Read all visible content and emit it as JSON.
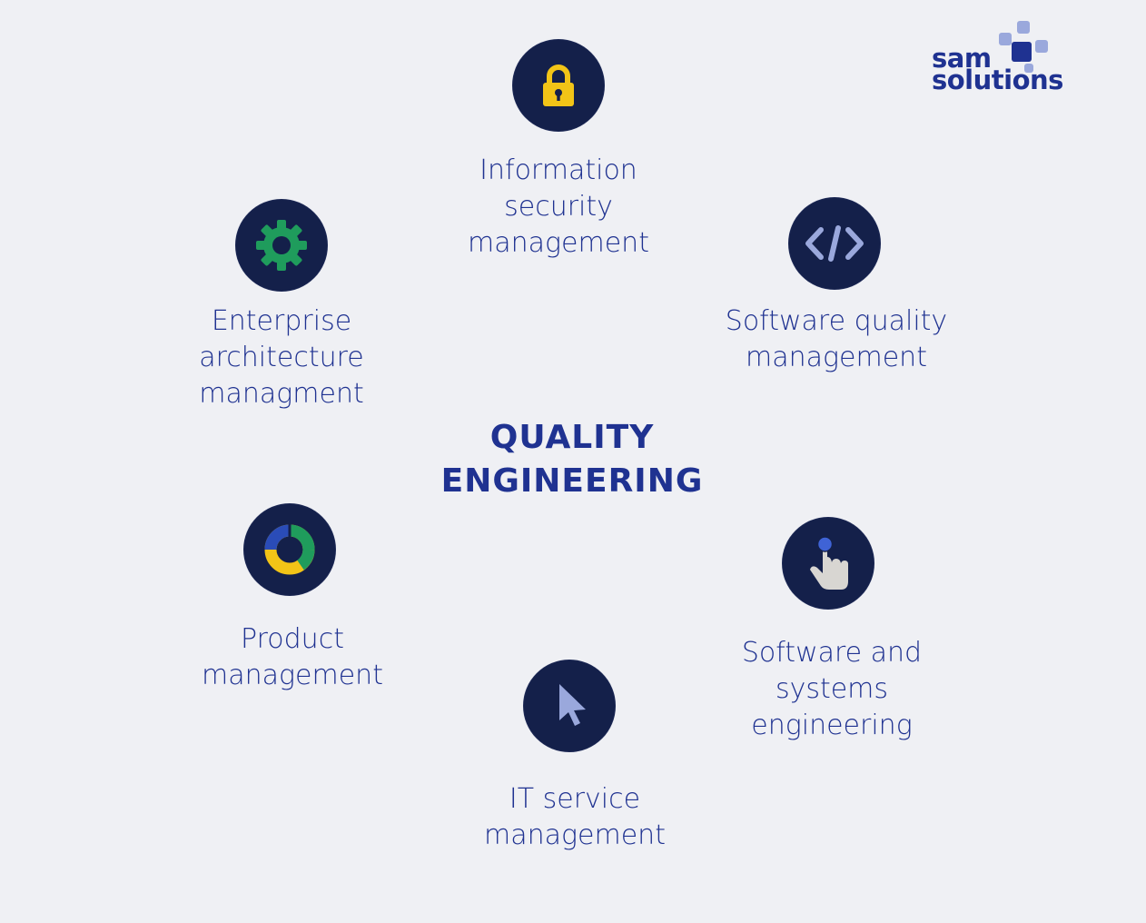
{
  "center": {
    "line1": "QUALITY",
    "line2": "ENGINEERING"
  },
  "logo": {
    "line1": "sam",
    "line2": "solutions"
  },
  "nodes": {
    "infosec": {
      "icon": "lock-icon",
      "lines": [
        "Information",
        "security",
        "management"
      ]
    },
    "software_quality": {
      "icon": "code-icon",
      "lines": [
        "Software quality",
        "management"
      ]
    },
    "systems_engineering": {
      "icon": "pointing-hand-icon",
      "lines": [
        "Software and",
        "systems",
        "engineering"
      ]
    },
    "it_service": {
      "icon": "cursor-arrow-icon",
      "lines": [
        "IT service",
        "management"
      ]
    },
    "product": {
      "icon": "donut-chart-icon",
      "lines": [
        "Product",
        "management"
      ]
    },
    "enterprise": {
      "icon": "gear-icon",
      "lines": [
        "Enterprise",
        "architecture",
        "managment"
      ]
    }
  },
  "colors": {
    "background": "#eff0f4",
    "circle": "#14204a",
    "text": "#1f3291",
    "lock": "#f2c417",
    "gear": "#1f9c5c",
    "code": "#9aa8dc",
    "hand": "#d8d6d2",
    "hand_dot": "#3f63d6",
    "cursor": "#9aa8dc",
    "donut_blue": "#2a4cb8",
    "donut_yellow": "#f2c417",
    "donut_green": "#1f9c5c"
  }
}
